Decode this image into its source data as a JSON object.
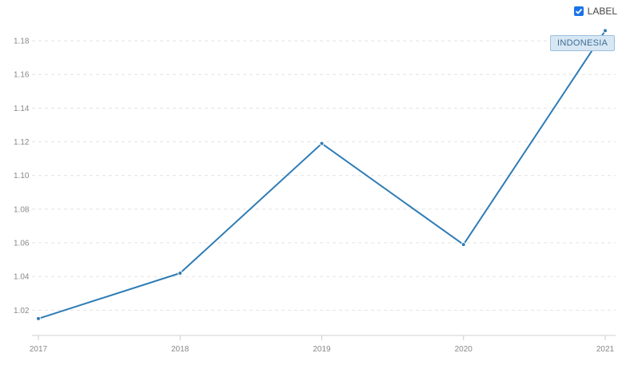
{
  "label_toggle": {
    "text": "LABEL",
    "checked": true
  },
  "chart_data": {
    "type": "line",
    "title": "",
    "xlabel": "",
    "ylabel": "",
    "x": [
      "2017",
      "2018",
      "2019",
      "2020",
      "2021"
    ],
    "series": [
      {
        "name": "INDONESIA",
        "values": [
          1.015,
          1.042,
          1.119,
          1.059,
          1.186
        ],
        "color": "#2e7cb5"
      }
    ],
    "ylim": [
      1.005,
      1.19
    ],
    "yticks": [
      "1.02",
      "1.04",
      "1.06",
      "1.08",
      "1.10",
      "1.12",
      "1.14",
      "1.16",
      "1.18"
    ],
    "grid": true,
    "show_labels": true
  }
}
